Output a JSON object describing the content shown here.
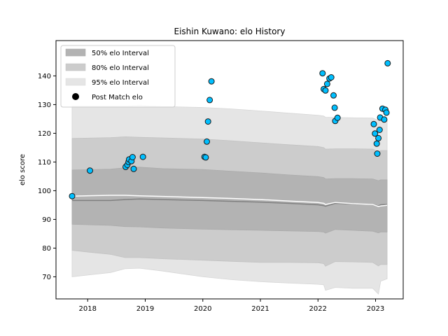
{
  "chart_data": {
    "type": "scatter",
    "title": "Eishin Kuwano: elo History",
    "ylabel": "elo score",
    "xlabel": "",
    "xlim": [
      2017.45,
      2023.48
    ],
    "ylim": [
      62.3,
      152.3
    ],
    "x_ticks": [
      2018,
      2019,
      2020,
      2021,
      2022,
      2023
    ],
    "y_ticks": [
      70,
      80,
      90,
      100,
      110,
      120,
      130,
      140
    ],
    "legend": {
      "position": "top-left",
      "entries": [
        {
          "label": "50% elo Interval",
          "color": "#b3b3b3"
        },
        {
          "label": "80% elo Interval",
          "color": "#cccccc"
        },
        {
          "label": "95% elo Interval",
          "color": "#e5e5e5"
        },
        {
          "label": "Post Match elo",
          "color": "#000000"
        }
      ]
    },
    "colors": {
      "band95": "#e5e5e5",
      "band80": "#cccccc",
      "band50": "#b3b3b3",
      "mean_line": "#808080",
      "estimate_line": "#ffffff",
      "marker_fill": "#00bfff",
      "marker_edge": "#1a1a1a"
    },
    "bands": {
      "x": [
        2017.73,
        2018.4,
        2018.65,
        2018.9,
        2019.3,
        2020.0,
        2020.5,
        2021.0,
        2021.5,
        2022.0,
        2022.1,
        2022.13,
        2022.3,
        2022.6,
        2022.95,
        2023.05,
        2023.09,
        2023.2
      ],
      "p95_upper": [
        129.5,
        129.5,
        129.5,
        129.7,
        129.3,
        129,
        128.5,
        127.8,
        127.0,
        126.3,
        126.0,
        125.6,
        125.5,
        125.4,
        125.3,
        124.5,
        124.8,
        124.8
      ],
      "p80_upper": [
        118.2,
        118.5,
        118.8,
        118.6,
        118.4,
        118.0,
        117.4,
        116.7,
        116.0,
        115.4,
        115.0,
        114.5,
        114.6,
        114.6,
        114.5,
        113.6,
        114.0,
        114.0
      ],
      "p50_upper": [
        107.2,
        107.5,
        108.0,
        108.2,
        107.7,
        107.4,
        106.8,
        106.2,
        105.5,
        104.9,
        104.6,
        104.1,
        104.2,
        104.2,
        104.1,
        103.5,
        103.8,
        103.8
      ],
      "mean": [
        96.6,
        96.6,
        96.9,
        97.1,
        96.9,
        96.6,
        96.3,
        96.0,
        95.6,
        95.1,
        94.8,
        94.6,
        95.6,
        95.4,
        95.2,
        94.7,
        95.1,
        95.2
      ],
      "estimate": [
        98.1,
        98.4,
        98.4,
        98.2,
        98.0,
        97.6,
        97.3,
        96.9,
        96.4,
        95.9,
        95.6,
        95.2,
        95.9,
        95.5,
        95.2,
        94.5,
        94.7,
        94.9
      ],
      "p50_lower": [
        88.3,
        87.9,
        87.5,
        87.4,
        87.0,
        86.6,
        86.4,
        86.2,
        86.0,
        85.8,
        85.6,
        85.2,
        86.5,
        86.2,
        85.9,
        85.3,
        85.6,
        85.6
      ],
      "p80_lower": [
        79.2,
        77.8,
        76.7,
        76.7,
        76.3,
        75.8,
        75.4,
        75.0,
        75.0,
        74.9,
        74.6,
        73.7,
        75.3,
        75.2,
        75.0,
        73.8,
        74.3,
        74.3
      ],
      "p95_lower": [
        70.0,
        71.5,
        72.8,
        73.0,
        72.0,
        70.0,
        69.0,
        68.3,
        67.8,
        67.4,
        67.2,
        65.3,
        66.3,
        66.0,
        66.0,
        64.0,
        68.5,
        69.3
      ]
    },
    "points": [
      {
        "x": 2017.73,
        "y": 98.1
      },
      {
        "x": 2018.04,
        "y": 107.0
      },
      {
        "x": 2018.66,
        "y": 108.3
      },
      {
        "x": 2018.69,
        "y": 109.0
      },
      {
        "x": 2018.71,
        "y": 110.0
      },
      {
        "x": 2018.72,
        "y": 110.9
      },
      {
        "x": 2018.76,
        "y": 110.3
      },
      {
        "x": 2018.78,
        "y": 111.7
      },
      {
        "x": 2018.8,
        "y": 107.6
      },
      {
        "x": 2018.96,
        "y": 111.8
      },
      {
        "x": 2020.03,
        "y": 111.8
      },
      {
        "x": 2020.05,
        "y": 111.6
      },
      {
        "x": 2020.07,
        "y": 117.1
      },
      {
        "x": 2020.09,
        "y": 124.1
      },
      {
        "x": 2020.12,
        "y": 131.6
      },
      {
        "x": 2020.15,
        "y": 138.1
      },
      {
        "x": 2022.08,
        "y": 140.9
      },
      {
        "x": 2022.1,
        "y": 135.4
      },
      {
        "x": 2022.13,
        "y": 134.9
      },
      {
        "x": 2022.16,
        "y": 137.2
      },
      {
        "x": 2022.2,
        "y": 139.1
      },
      {
        "x": 2022.23,
        "y": 139.5
      },
      {
        "x": 2022.27,
        "y": 133.2
      },
      {
        "x": 2022.29,
        "y": 128.9
      },
      {
        "x": 2022.3,
        "y": 124.3
      },
      {
        "x": 2022.34,
        "y": 125.4
      },
      {
        "x": 2022.97,
        "y": 123.2
      },
      {
        "x": 2022.99,
        "y": 119.9
      },
      {
        "x": 2023.02,
        "y": 116.4
      },
      {
        "x": 2023.03,
        "y": 112.9
      },
      {
        "x": 2023.05,
        "y": 118.3
      },
      {
        "x": 2023.07,
        "y": 121.2
      },
      {
        "x": 2023.08,
        "y": 125.5
      },
      {
        "x": 2023.12,
        "y": 128.6
      },
      {
        "x": 2023.15,
        "y": 124.8
      },
      {
        "x": 2023.17,
        "y": 128.2
      },
      {
        "x": 2023.19,
        "y": 127.2
      },
      {
        "x": 2023.21,
        "y": 144.4
      }
    ]
  }
}
